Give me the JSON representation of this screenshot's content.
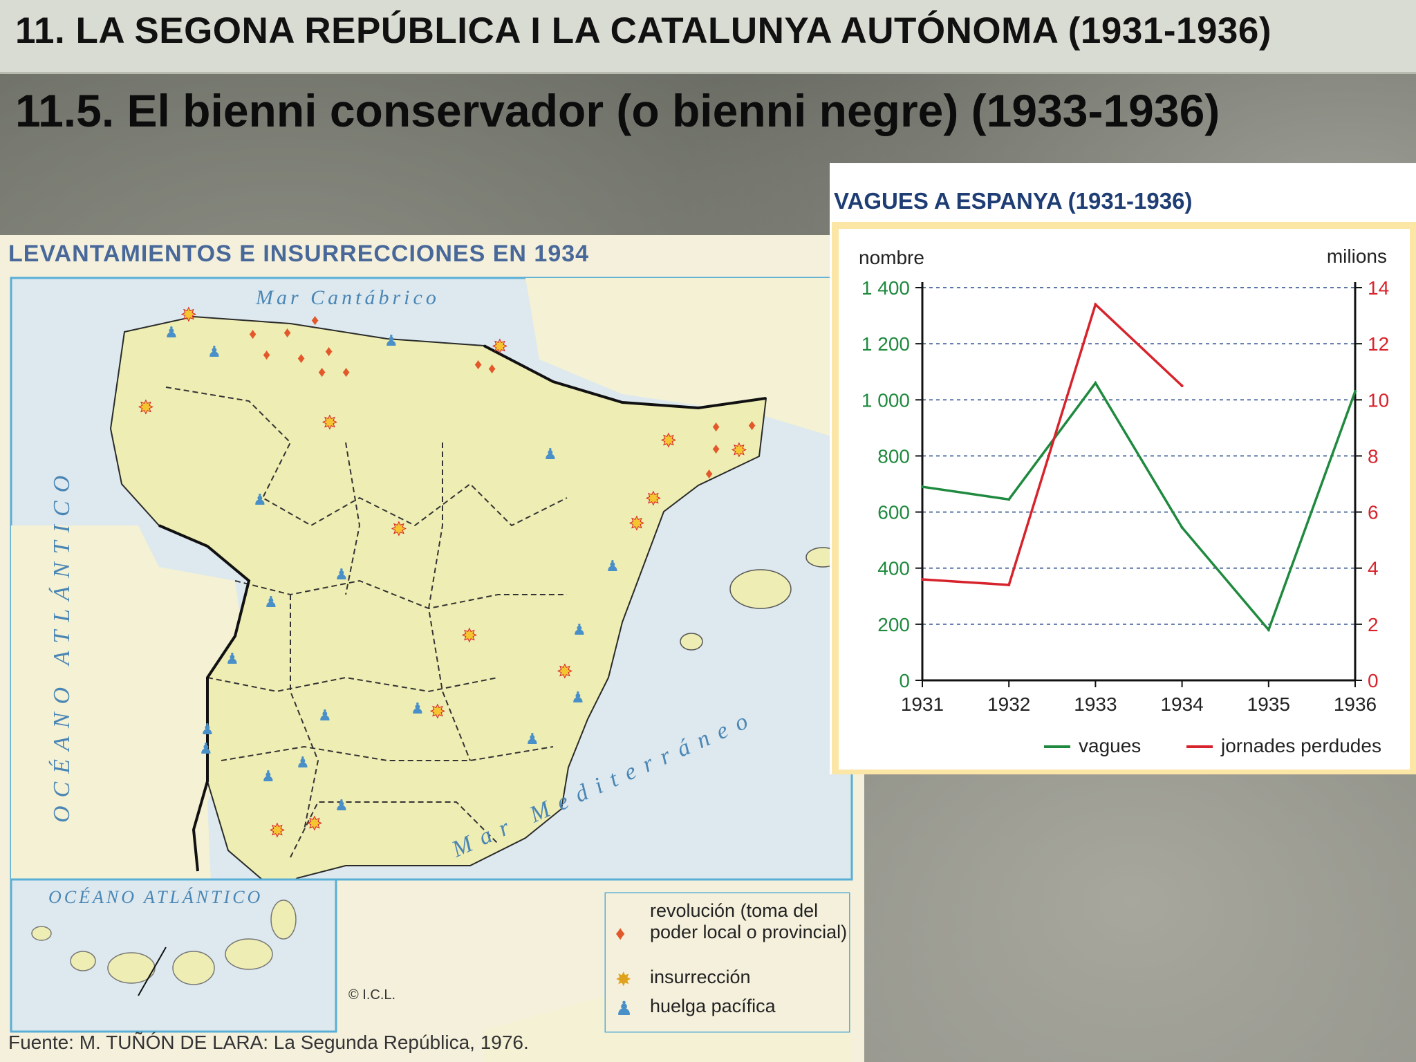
{
  "header": {
    "title": "11. LA SEGONA REPÚBLICA I LA CATALUNYA AUTÓNOMA (1931-1936)",
    "subtitle": "11.5. El bienni conservador  (o bienni negre) (1933-1936)"
  },
  "map": {
    "title": "LEVANTAMIENTOS E INSURRECCIONES EN 1934",
    "labels": {
      "sea_north": "Mar Cantábrico",
      "ocean_west": "OCÉANO ATLÁNTICO",
      "ocean_canary": "OCÉANO ATLÁNTICO",
      "sea_med": "Mar Mediterráneo"
    },
    "copyright": "© I.C.L.",
    "source": "Fuente: M. TUÑÓN DE LARA: La Segunda República, 1976.",
    "legend": [
      {
        "icon": "flame-icon",
        "label_line1": "revolución (toma del",
        "label_line2": "poder local o provincial)"
      },
      {
        "icon": "star-burst-icon",
        "label_line1": "insurrección"
      },
      {
        "icon": "striker-icon",
        "label_line1": "huelga pacífica"
      }
    ],
    "colors": {
      "land": "#eeedb3",
      "sea": "#dde9ee",
      "border": "#59aed6",
      "flame": "#e2582a",
      "star": "#f4c431",
      "strike": "#4a90c8"
    }
  },
  "chart_data": {
    "type": "line",
    "title": "VAGUES A ESPANYA (1931-1936)",
    "y_left_label": "nombre",
    "y_right_label": "milions",
    "x": [
      "1931",
      "1932",
      "1933",
      "1934",
      "1935",
      "1936"
    ],
    "y_left_ticks": [
      "0",
      "200",
      "400",
      "600",
      "800",
      "1 000",
      "1 200",
      "1 400"
    ],
    "y_right_ticks": [
      "0",
      "2",
      "4",
      "6",
      "8",
      "10",
      "12",
      "14"
    ],
    "ylim_left": [
      0,
      1400
    ],
    "ylim_right": [
      0,
      14
    ],
    "grid": true,
    "legend_position": "bottom",
    "series": [
      {
        "name": "vagues",
        "axis": "left",
        "color": "#1f8a3f",
        "values": [
          690,
          645,
          1060,
          545,
          180,
          1030
        ]
      },
      {
        "name": "jornades perdudes",
        "axis": "right",
        "color": "#d7232b",
        "values": [
          3.6,
          3.4,
          13.4,
          10.5,
          null,
          null
        ]
      }
    ]
  }
}
